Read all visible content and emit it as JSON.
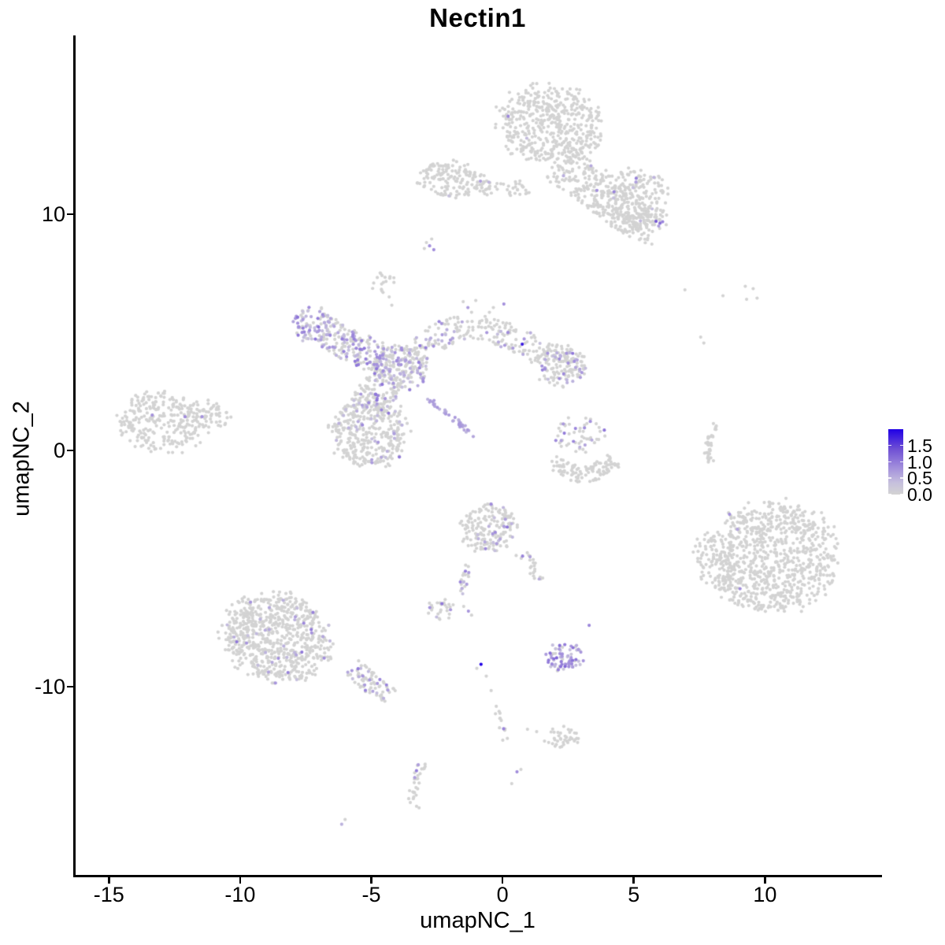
{
  "chart_data": {
    "type": "scatter",
    "title": "Nectin1",
    "xlabel": "umapNC_1",
    "ylabel": "umapNC_2",
    "x_ticks": [
      -15,
      -10,
      -5,
      0,
      5,
      10
    ],
    "y_ticks": [
      -10,
      0,
      10
    ],
    "x_range": [
      -16.3,
      14.4
    ],
    "y_range": [
      -18.03,
      17.5
    ],
    "grid": false,
    "legend": {
      "position": "right",
      "ticks": [
        1.5,
        1.0,
        0.5,
        0.0
      ],
      "min": 0,
      "max": 2
    },
    "point_radius": 2.1,
    "seed": 42,
    "color_stops": [
      {
        "t": 0.0,
        "c": "#d3d3d3"
      },
      {
        "t": 0.18,
        "c": "#c6c0dd"
      },
      {
        "t": 0.4,
        "c": "#a491dc"
      },
      {
        "t": 0.7,
        "c": "#6e4fd4"
      },
      {
        "t": 1.0,
        "c": "#2000e6"
      }
    ],
    "clusters": [
      {
        "name": "top-main",
        "type": "blob",
        "cx": 1.8,
        "cy": 13.8,
        "rx": 2.05,
        "ry": 1.75,
        "rot": -15,
        "n": 500,
        "expr_frac": 0.004
      },
      {
        "name": "top-arm",
        "type": "path",
        "pts": [
          [
            2.1,
            12.1
          ],
          [
            3.2,
            11.4
          ],
          [
            4.1,
            10.6
          ],
          [
            5.2,
            9.8
          ],
          [
            5.9,
            9.4
          ]
        ],
        "width": 0.85,
        "n": 320,
        "expr_frac": 0.03
      },
      {
        "name": "top-right-lobe",
        "type": "blob",
        "cx": 5.0,
        "cy": 10.6,
        "rx": 1.35,
        "ry": 1.35,
        "rot": 0,
        "n": 210,
        "expr_frac": 0.025
      },
      {
        "name": "top-right-purple-spot",
        "type": "points",
        "pts": [
          [
            5.85,
            9.7,
            1.3
          ],
          [
            6.0,
            9.62,
            1.1
          ],
          [
            5.95,
            9.5,
            0.7
          ],
          [
            6.1,
            9.68,
            0.9
          ]
        ]
      },
      {
        "name": "top-left-sub",
        "type": "blob",
        "cx": -1.95,
        "cy": 11.45,
        "rx": 1.4,
        "ry": 0.8,
        "rot": -8,
        "n": 150,
        "expr_frac": 0.012
      },
      {
        "name": "top-chain",
        "type": "path",
        "pts": [
          [
            -0.9,
            11.1
          ],
          [
            0.0,
            11.0
          ],
          [
            0.9,
            11.15
          ]
        ],
        "width": 0.3,
        "n": 40,
        "expr_frac": 0.05
      },
      {
        "name": "tiny-cluster-mid-top",
        "type": "points",
        "pts": [
          [
            -2.9,
            8.8,
            0
          ],
          [
            -2.78,
            8.66,
            0.8
          ],
          [
            -2.62,
            8.5,
            0.85
          ],
          [
            -2.98,
            8.55,
            0
          ],
          [
            -2.7,
            8.95,
            0
          ]
        ]
      },
      {
        "name": "small-blob-upper-center",
        "type": "blob",
        "cx": -4.55,
        "cy": 7.1,
        "rx": 0.5,
        "ry": 0.48,
        "rot": 0,
        "n": 17,
        "expr_frac": 0
      },
      {
        "name": "small-blob-stragglers",
        "type": "points",
        "pts": [
          [
            -4.32,
            6.5,
            0
          ],
          [
            -4.22,
            6.15,
            0
          ]
        ]
      },
      {
        "name": "cx-topleft-purple",
        "type": "blob",
        "cx": -7.2,
        "cy": 5.35,
        "rx": 0.85,
        "ry": 0.8,
        "rot": 0,
        "n": 95,
        "expr_frac": 0.6,
        "expr_lo": 0.3,
        "expr_hi": 1.1
      },
      {
        "name": "cx-arm-left",
        "type": "path",
        "pts": [
          [
            -6.6,
            4.95
          ],
          [
            -5.7,
            4.4
          ],
          [
            -4.8,
            3.95
          ]
        ],
        "width": 0.7,
        "n": 150,
        "expr_frac": 0.4
      },
      {
        "name": "cx-center",
        "type": "blob",
        "cx": -3.95,
        "cy": 3.5,
        "rx": 1.1,
        "ry": 1.0,
        "rot": 0,
        "n": 240,
        "expr_frac": 0.3
      },
      {
        "name": "cx-arm-up",
        "type": "path",
        "pts": [
          [
            -3.3,
            4.2
          ],
          [
            -2.3,
            4.9
          ],
          [
            -1.4,
            5.35
          ]
        ],
        "width": 0.55,
        "n": 85,
        "expr_frac": 0.15
      },
      {
        "name": "cx-arm-right",
        "type": "path",
        "pts": [
          [
            -1.2,
            5.3
          ],
          [
            -0.2,
            5.05
          ],
          [
            0.8,
            4.6
          ],
          [
            1.5,
            4.1
          ]
        ],
        "width": 0.55,
        "n": 100,
        "expr_frac": 0.12
      },
      {
        "name": "cx-right-lobe",
        "type": "blob",
        "cx": 2.2,
        "cy": 3.6,
        "rx": 1.05,
        "ry": 0.95,
        "rot": 0,
        "n": 165,
        "expr_frac": 0.2
      },
      {
        "name": "cx-dark-dot",
        "type": "points",
        "pts": [
          [
            0.75,
            4.5,
            1.8
          ]
        ]
      },
      {
        "name": "cx-bottom-lobe",
        "type": "blob",
        "cx": -5.1,
        "cy": 0.8,
        "rx": 1.55,
        "ry": 1.6,
        "rot": 0,
        "n": 370,
        "expr_frac": 0.1
      },
      {
        "name": "cx-neck",
        "type": "path",
        "pts": [
          [
            -4.5,
            3.0
          ],
          [
            -4.9,
            2.2
          ],
          [
            -5.2,
            1.7
          ]
        ],
        "width": 0.75,
        "n": 90,
        "expr_frac": 0.25
      },
      {
        "name": "purple-streak",
        "type": "path",
        "pts": [
          [
            -2.85,
            2.2
          ],
          [
            -2.2,
            1.65
          ],
          [
            -1.6,
            1.1
          ],
          [
            -1.1,
            0.62
          ]
        ],
        "width": 0.1,
        "n": 42,
        "expr_frac": 1.0,
        "expr_lo": 0.45,
        "expr_hi": 0.75
      },
      {
        "name": "cx-top-spur",
        "type": "points",
        "pts": [
          [
            -1.5,
            6.3,
            0
          ],
          [
            -1.32,
            6.05,
            0.7
          ],
          [
            -1.18,
            5.85,
            0
          ],
          [
            -1.02,
            6.35,
            0
          ],
          [
            0.05,
            6.2,
            0.8
          ],
          [
            -0.35,
            6.05,
            0
          ],
          [
            -0.62,
            5.55,
            0
          ],
          [
            -0.5,
            5.85,
            0
          ]
        ]
      },
      {
        "name": "left-island-main",
        "type": "blob",
        "cx": -12.9,
        "cy": 1.2,
        "rx": 1.75,
        "ry": 1.3,
        "rot": -5,
        "n": 260,
        "expr_frac": 0
      },
      {
        "name": "left-island-tip",
        "type": "blob",
        "cx": -11.3,
        "cy": 1.55,
        "rx": 1.0,
        "ry": 0.6,
        "rot": -15,
        "n": 60,
        "expr_frac": 0
      },
      {
        "name": "left-island-purple",
        "type": "points",
        "pts": [
          [
            -13.35,
            1.5,
            0.8
          ],
          [
            -12.1,
            1.43,
            0.85
          ],
          [
            -11.45,
            1.43,
            0.8
          ]
        ]
      },
      {
        "name": "mid-right-scatter",
        "type": "blob",
        "cx": 2.95,
        "cy": 0.7,
        "rx": 1.05,
        "ry": 0.8,
        "rot": 0,
        "n": 55,
        "expr_frac": 0.18
      },
      {
        "name": "mid-right-crescent",
        "type": "path",
        "pts": [
          [
            1.95,
            -0.4
          ],
          [
            2.5,
            -0.9
          ],
          [
            3.1,
            -1.05
          ],
          [
            3.75,
            -0.8
          ],
          [
            4.3,
            -0.35
          ]
        ],
        "width": 0.35,
        "n": 110,
        "expr_frac": 0.01
      },
      {
        "name": "right-sliver",
        "type": "path",
        "pts": [
          [
            8.1,
            1.2
          ],
          [
            7.9,
            0.5
          ],
          [
            7.78,
            -0.15
          ],
          [
            7.95,
            -0.5
          ]
        ],
        "width": 0.12,
        "n": 38,
        "expr_frac": 0
      },
      {
        "name": "top-right-sparse-dots",
        "type": "points",
        "pts": [
          [
            6.95,
            6.8,
            0
          ],
          [
            8.4,
            6.55,
            0
          ],
          [
            9.25,
            6.95,
            0
          ],
          [
            9.55,
            6.85,
            0
          ],
          [
            9.7,
            6.45,
            0
          ],
          [
            9.3,
            6.4,
            0
          ],
          [
            7.55,
            4.8,
            0
          ],
          [
            7.67,
            4.55,
            0
          ]
        ]
      },
      {
        "name": "bottom-right-main",
        "type": "blob",
        "cx": 10.3,
        "cy": -4.5,
        "rx": 2.55,
        "ry": 2.4,
        "rot": 10,
        "n": 850,
        "expr_frac": 0.002
      },
      {
        "name": "bottom-right-appendage",
        "type": "blob",
        "cx": 8.1,
        "cy": -4.7,
        "rx": 0.8,
        "ry": 1.45,
        "rot": 15,
        "n": 85,
        "expr_frac": 0
      },
      {
        "name": "bottom-right-purple",
        "type": "points",
        "pts": [
          [
            8.65,
            -2.7,
            0.8
          ],
          [
            9.05,
            -5.85,
            0.85
          ]
        ]
      },
      {
        "name": "center-bottom-main",
        "type": "blob",
        "cx": -0.5,
        "cy": -3.3,
        "rx": 1.15,
        "ry": 1.05,
        "rot": 0,
        "n": 175,
        "expr_frac": 0.1
      },
      {
        "name": "center-bottom-left-leg",
        "type": "path",
        "pts": [
          [
            -1.25,
            -4.6
          ],
          [
            -1.45,
            -5.4
          ],
          [
            -1.58,
            -6.1
          ]
        ],
        "width": 0.15,
        "n": 20,
        "expr_frac": 0.25
      },
      {
        "name": "center-bottom-right-leg",
        "type": "path",
        "pts": [
          [
            0.6,
            -4.2
          ],
          [
            1.1,
            -4.9
          ],
          [
            1.45,
            -5.6
          ]
        ],
        "width": 0.22,
        "n": 25,
        "expr_frac": 0.12
      },
      {
        "name": "small-cluster-left-of-dark-dot",
        "type": "blob",
        "cx": -2.45,
        "cy": -6.75,
        "rx": 0.6,
        "ry": 0.52,
        "rot": 0,
        "n": 28,
        "expr_frac": 0.1
      },
      {
        "name": "lone-purple-with-grays",
        "type": "points",
        "pts": [
          [
            -1.3,
            -6.8,
            0.75
          ],
          [
            -1.48,
            -6.6,
            0
          ],
          [
            -1.18,
            -6.97,
            0
          ]
        ]
      },
      {
        "name": "bottom-left-main",
        "type": "blob",
        "cx": -8.6,
        "cy": -7.9,
        "rx": 2.15,
        "ry": 1.9,
        "rot": -20,
        "n": 740,
        "expr_frac": 0.05
      },
      {
        "name": "bottom-left-tail",
        "type": "path",
        "pts": [
          [
            -5.7,
            -9.2
          ],
          [
            -5.0,
            -9.85
          ],
          [
            -4.35,
            -10.45
          ]
        ],
        "width": 0.42,
        "n": 80,
        "expr_frac": 0.18
      },
      {
        "name": "purple-cluster-bottom",
        "type": "blob",
        "cx": 2.35,
        "cy": -8.75,
        "rx": 0.72,
        "ry": 0.68,
        "rot": 0,
        "n": 75,
        "expr_frac": 0.78,
        "expr_lo": 0.25,
        "expr_hi": 1.2
      },
      {
        "name": "purple-dot-above-cluster",
        "type": "points",
        "pts": [
          [
            3.3,
            -7.4,
            0.9
          ]
        ]
      },
      {
        "name": "dark-blue-dot",
        "type": "points",
        "pts": [
          [
            -0.82,
            -9.05,
            2.0
          ],
          [
            -0.98,
            -9.22,
            0
          ],
          [
            -0.62,
            -9.55,
            0
          ]
        ]
      },
      {
        "name": "below-center-chain",
        "type": "path",
        "pts": [
          [
            -0.45,
            -10.1
          ],
          [
            -0.25,
            -10.9
          ],
          [
            -0.05,
            -11.6
          ],
          [
            0.12,
            -12.25
          ]
        ],
        "width": 0.13,
        "n": 14,
        "expr_frac": 0.18
      },
      {
        "name": "bottom-center-blob",
        "type": "blob",
        "cx": 2.3,
        "cy": -12.15,
        "rx": 0.62,
        "ry": 0.48,
        "rot": 0,
        "n": 40,
        "expr_frac": 0
      },
      {
        "name": "bottom-center-sparse",
        "type": "points",
        "pts": [
          [
            0.95,
            -11.8,
            0
          ],
          [
            1.3,
            -11.9,
            0
          ],
          [
            1.6,
            -12.3,
            0
          ]
        ]
      },
      {
        "name": "thin-vertical-chain",
        "type": "path",
        "pts": [
          [
            -3.05,
            -13.2
          ],
          [
            -3.3,
            -13.9
          ],
          [
            -3.45,
            -14.6
          ],
          [
            -3.28,
            -15.2
          ]
        ],
        "width": 0.16,
        "n": 30,
        "expr_frac": 0.04
      },
      {
        "name": "purple-dot-bottom-center",
        "type": "points",
        "pts": [
          [
            0.55,
            -13.6,
            0.85
          ],
          [
            0.7,
            -13.5,
            0
          ],
          [
            0.35,
            -14.1,
            0
          ]
        ]
      },
      {
        "name": "bottom-small-pair",
        "type": "points",
        "pts": [
          [
            -6.0,
            -15.62,
            0
          ],
          [
            -6.13,
            -15.82,
            0.5
          ]
        ]
      }
    ]
  }
}
